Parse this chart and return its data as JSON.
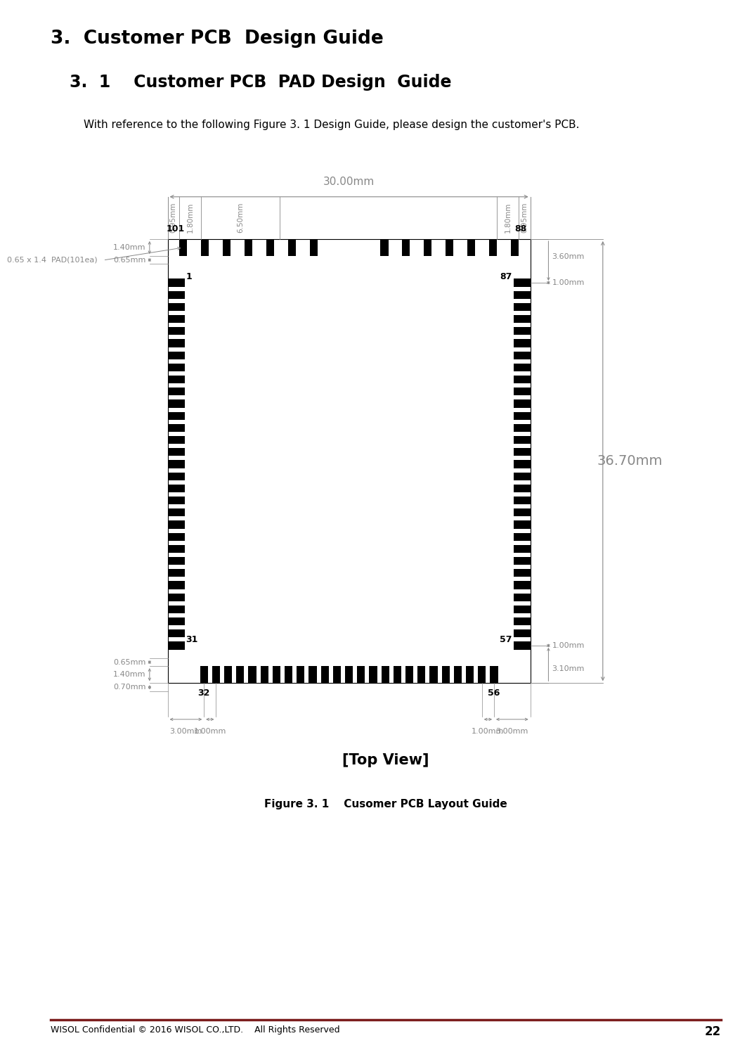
{
  "title1": "3.  Customer PCB  Design Guide",
  "title2": "3.  1    Customer PCB  PAD Design  Guide",
  "description": "With reference to the following Figure 3. 1 Design Guide, please design the customer's PCB.",
  "caption_top_view": "[Top View]",
  "caption_figure": "Figure 3. 1    Cusomer PCB Layout Guide",
  "footer": "WISOL Confidential © 2016 WISOL CO.,LTD.    All Rights Reserved",
  "footer_page": "22",
  "dim_30mm": "30.00mm",
  "dim_095mm": "0.95mm",
  "dim_180mm": "1.80mm",
  "dim_650mm": "6.50mm",
  "dim_360mm": "3.60mm",
  "dim_100mm": "1.00mm",
  "dim_3670mm": "36.70mm",
  "dim_065mm": "0.65mm",
  "dim_140mm": "1.40mm",
  "dim_070mm": "0.70mm",
  "dim_300mm": "3.00mm",
  "dim_310mm": "3.10mm",
  "dim_pad": "0.65 x 1.4  PAD(101ea)",
  "pin_101": "101",
  "pin_88": "88",
  "pin_1": "1",
  "pin_87": "87",
  "pin_31": "31",
  "pin_57": "57",
  "pin_32": "32",
  "pin_56": "56",
  "bg_color": "#ffffff",
  "line_color": "#000000",
  "dim_color": "#888888",
  "footer_line_color": "#7b1c1c"
}
